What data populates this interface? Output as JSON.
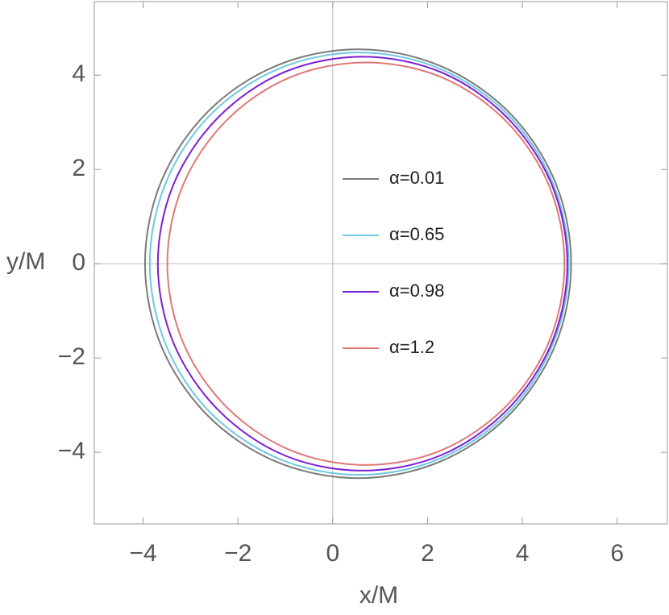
{
  "chart_data": {
    "type": "line",
    "xlabel": "x/M",
    "ylabel": "y/M",
    "xlim": [
      -5.03,
      7.06
    ],
    "ylim": [
      -5.52,
      5.56
    ],
    "xticks": [
      {
        "value": -4,
        "label": "−4"
      },
      {
        "value": -2,
        "label": "−2"
      },
      0,
      2,
      4,
      6
    ],
    "yticks": [
      {
        "value": -4,
        "label": "−4"
      },
      {
        "value": -2,
        "label": "−2"
      },
      0,
      2,
      4
    ],
    "legend": "center",
    "series": [
      {
        "name": "α=0.01",
        "color": "#7a7a7a",
        "x": [
          5.03,
          4.69,
          3.71,
          2.26,
          0.54,
          -1.19,
          -2.64,
          -3.62,
          -3.96,
          -3.62,
          -2.64,
          -1.19,
          0.54,
          2.26,
          3.71,
          4.69
        ],
        "values": [
          0,
          1.74,
          3.22,
          4.2,
          4.55,
          4.2,
          3.22,
          1.74,
          0,
          -1.74,
          -3.22,
          -4.2,
          -4.55,
          -4.2,
          -3.22,
          -1.74
        ]
      },
      {
        "name": "α=0.65",
        "color": "#6ec9e2",
        "x": [
          4.98,
          4.64,
          3.69,
          2.25,
          0.56,
          -1.13,
          -2.57,
          -3.52,
          -3.86,
          -3.52,
          -2.57,
          -1.13,
          0.56,
          2.25,
          3.69,
          4.64
        ],
        "values": [
          0,
          1.72,
          3.17,
          4.14,
          4.48,
          4.14,
          3.17,
          1.72,
          0,
          -1.72,
          -3.17,
          -4.14,
          -4.48,
          -4.14,
          -3.17,
          -1.72
        ]
      },
      {
        "name": "α=0.98",
        "color": "#7a1fd6",
        "x": [
          4.95,
          4.62,
          3.68,
          2.29,
          0.63,
          -1.03,
          -2.42,
          -3.36,
          -3.69,
          -3.36,
          -2.42,
          -1.03,
          0.63,
          2.29,
          3.68,
          4.62
        ],
        "values": [
          0,
          1.68,
          3.1,
          4.06,
          4.39,
          4.06,
          3.1,
          1.68,
          0,
          -1.68,
          -3.1,
          -4.06,
          -4.39,
          -4.06,
          -3.1,
          -1.68
        ]
      },
      {
        "name": "α=1.2",
        "color": "#e07878",
        "x": [
          4.89,
          4.57,
          3.66,
          2.31,
          0.7,
          -0.91,
          -2.26,
          -3.17,
          -3.49,
          -3.17,
          -2.26,
          -0.91,
          0.7,
          2.31,
          3.66,
          4.57
        ],
        "values": [
          0,
          1.64,
          3.02,
          3.95,
          4.27,
          3.95,
          3.02,
          1.64,
          0,
          -1.64,
          -3.02,
          -3.95,
          -4.27,
          -3.95,
          -3.02,
          -1.64
        ]
      }
    ]
  }
}
